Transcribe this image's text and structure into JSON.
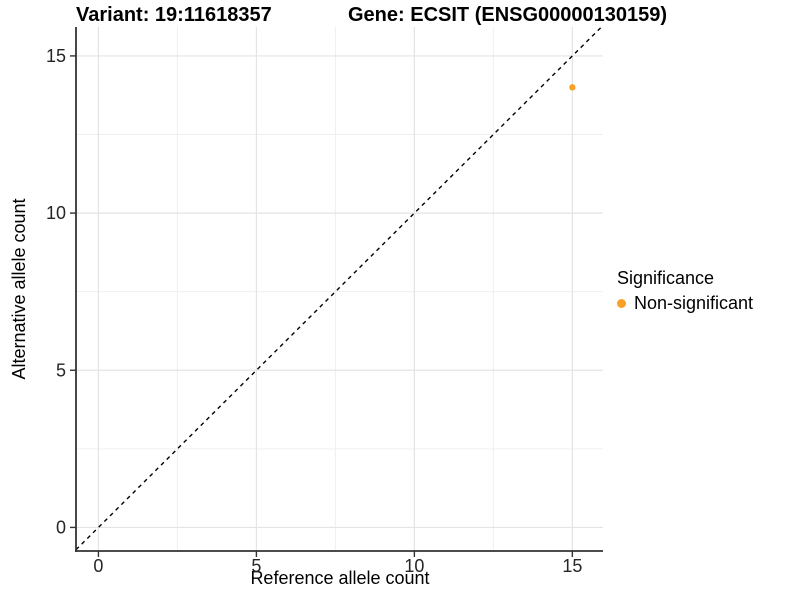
{
  "chart_data": {
    "type": "scatter",
    "title_left": "Variant: 19:11618357",
    "title_right": "Gene: ECSIT (ENSG00000130159)",
    "xlabel": "Reference allele count",
    "ylabel": "Alternative allele count",
    "xlim": [
      -0.71,
      15.97
    ],
    "ylim": [
      -0.75,
      15.92
    ],
    "x_ticks": [
      0,
      5,
      10,
      15
    ],
    "y_ticks": [
      0,
      5,
      10,
      15
    ],
    "x_minor_ticks": [
      2.5,
      7.5,
      12.5
    ],
    "y_minor_ticks": [
      2.5,
      7.5,
      12.5
    ],
    "grid": true,
    "points": [
      {
        "x": 15,
        "y": 14,
        "series": "Non-significant"
      }
    ],
    "reference_line": {
      "type": "identity",
      "style": "dashed"
    },
    "legend": {
      "title": "Significance",
      "position": "right",
      "entries": [
        {
          "label": "Non-significant",
          "color": "#F9A02B"
        }
      ]
    },
    "colors": {
      "point": "#F9A02B",
      "grid_major": "#E4E4E4",
      "grid_minor": "#EFEFEF",
      "axis_line": "#333333",
      "dashed_line": "#000000",
      "tick_label": "#262626"
    }
  }
}
